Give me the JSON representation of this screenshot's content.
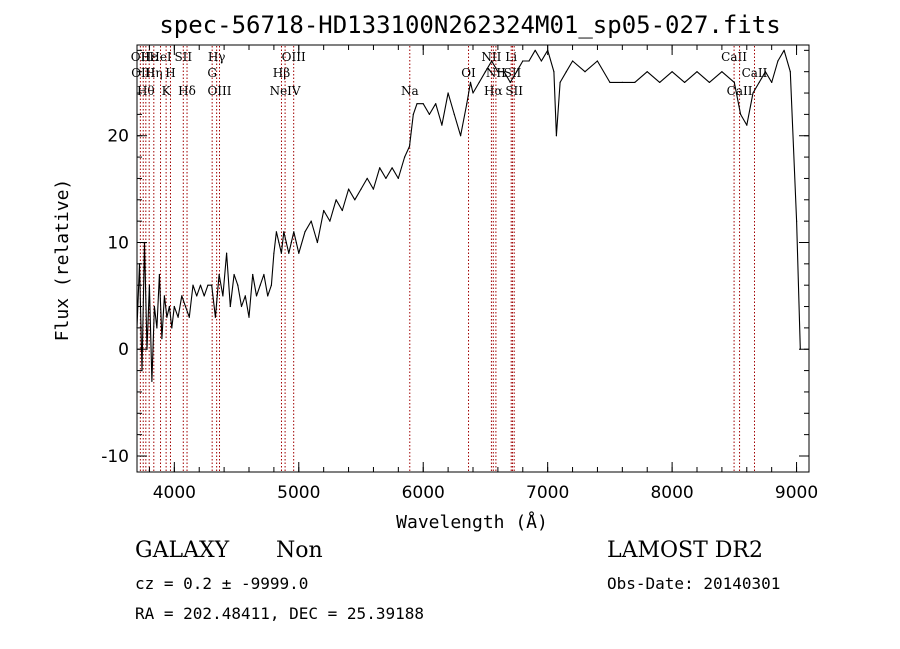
{
  "chart_data": {
    "type": "line",
    "title": "spec-56718-HD133100N262324M01_sp05-027.fits",
    "xlabel": "Wavelength (Å)",
    "ylabel": "Flux (relative)",
    "xlim": [
      3700,
      9100
    ],
    "ylim": [
      -11.5,
      28.5
    ],
    "xticks": [
      4000,
      5000,
      6000,
      7000,
      8000,
      9000
    ],
    "yticks": [
      -10,
      0,
      10,
      20
    ],
    "grid": false,
    "series": [
      {
        "x": [
          3700,
          3720,
          3740,
          3760,
          3780,
          3800,
          3820,
          3840,
          3860,
          3880,
          3900,
          3920,
          3940,
          3960,
          3980,
          4000,
          4030,
          4060,
          4090,
          4120,
          4150,
          4180,
          4210,
          4240,
          4270,
          4300,
          4330,
          4360,
          4390,
          4420,
          4450,
          4480,
          4510,
          4540,
          4570,
          4600,
          4630,
          4660,
          4690,
          4720,
          4750,
          4780,
          4800,
          4820,
          4840,
          4860,
          4880,
          4900,
          4920,
          4940,
          4960,
          4980,
          5000,
          5050,
          5100,
          5150,
          5200,
          5250,
          5300,
          5350,
          5400,
          5450,
          5500,
          5550,
          5600,
          5650,
          5700,
          5750,
          5800,
          5850,
          5890,
          5920,
          5950,
          6000,
          6050,
          6100,
          6150,
          6200,
          6250,
          6300,
          6350,
          6380,
          6400,
          6450,
          6500,
          6550,
          6600,
          6650,
          6700,
          6750,
          6800,
          6850,
          6900,
          6950,
          7000,
          7050,
          7070,
          7100,
          7150,
          7200,
          7300,
          7400,
          7500,
          7600,
          7700,
          7800,
          7900,
          8000,
          8100,
          8200,
          8300,
          8400,
          8500,
          8550,
          8600,
          8650,
          8700,
          8750,
          8800,
          8850,
          8900,
          8950,
          9000,
          9030
        ],
        "values": [
          2,
          8,
          -2,
          10,
          0,
          6,
          -3,
          4,
          2,
          7,
          1,
          5,
          3,
          4,
          2,
          4,
          3,
          5,
          4,
          3,
          6,
          5,
          6,
          5,
          6,
          6,
          3,
          7,
          5,
          9,
          4,
          7,
          6,
          4,
          5,
          3,
          7,
          5,
          6,
          7,
          5,
          6,
          9,
          11,
          10,
          9,
          11,
          10,
          9,
          10,
          11,
          10,
          9,
          11,
          12,
          10,
          13,
          12,
          14,
          13,
          15,
          14,
          15,
          16,
          15,
          17,
          16,
          17,
          16,
          18,
          19,
          22,
          23,
          23,
          22,
          23,
          21,
          24,
          22,
          20,
          23,
          25,
          24,
          25,
          26,
          27,
          26,
          26,
          25,
          26,
          27,
          27,
          28,
          27,
          28,
          26,
          20,
          25,
          26,
          27,
          26,
          27,
          25,
          25,
          25,
          26,
          25,
          26,
          25,
          26,
          25,
          26,
          25,
          22,
          21,
          24,
          25,
          26,
          25,
          27,
          28,
          26,
          12,
          0
        ]
      }
    ],
    "lines": [
      {
        "x": 3727,
        "label": "OII",
        "row": 1
      },
      {
        "x": 3750,
        "label": "OIII",
        "row": 2
      },
      {
        "x": 3771,
        "label": "Hθ",
        "row": 3
      },
      {
        "x": 3798,
        "label": "Hε",
        "row": 1
      },
      {
        "x": 3835,
        "label": "Hη",
        "row": 2
      },
      {
        "x": 3889,
        "label": "HeI",
        "row": 1
      },
      {
        "x": 3934,
        "label": "K",
        "row": 3
      },
      {
        "x": 3969,
        "label": "H",
        "row": 2
      },
      {
        "x": 4072,
        "label": "SII",
        "row": 1
      },
      {
        "x": 4102,
        "label": "Hδ",
        "row": 3
      },
      {
        "x": 4304,
        "label": "G",
        "row": 2
      },
      {
        "x": 4340,
        "label": "Hγ",
        "row": 1
      },
      {
        "x": 4363,
        "label": "OIII",
        "row": 3
      },
      {
        "x": 4861,
        "label": "Hβ",
        "row": 2
      },
      {
        "x": 4959,
        "label": "OIII",
        "row": 1
      },
      {
        "x": 4890,
        "label": "NeIV",
        "row": 3
      },
      {
        "x": 5892,
        "label": "Na",
        "row": 3
      },
      {
        "x": 6364,
        "label": "OI",
        "row": 2
      },
      {
        "x": 6548,
        "label": "NII",
        "row": 1
      },
      {
        "x": 6563,
        "label": "Hα",
        "row": 3
      },
      {
        "x": 6584,
        "label": "NII",
        "row": 2
      },
      {
        "x": 6707,
        "label": "Li",
        "row": 1
      },
      {
        "x": 6717,
        "label": "SII",
        "row": 2
      },
      {
        "x": 6731,
        "label": "SII",
        "row": 3
      },
      {
        "x": 8498,
        "label": "CaII",
        "row": 1
      },
      {
        "x": 8542,
        "label": "CaII",
        "row": 3
      },
      {
        "x": 8662,
        "label": "CaII",
        "row": 2
      }
    ]
  },
  "info": {
    "object_class": "GALAXY",
    "subclass": "Non",
    "cz": "cz = 0.2 ± -9999.0",
    "coords": "RA = 202.48411, DEC =  25.39188",
    "survey": "LAMOST DR2",
    "obs_date": "Obs-Date: 20140301"
  }
}
